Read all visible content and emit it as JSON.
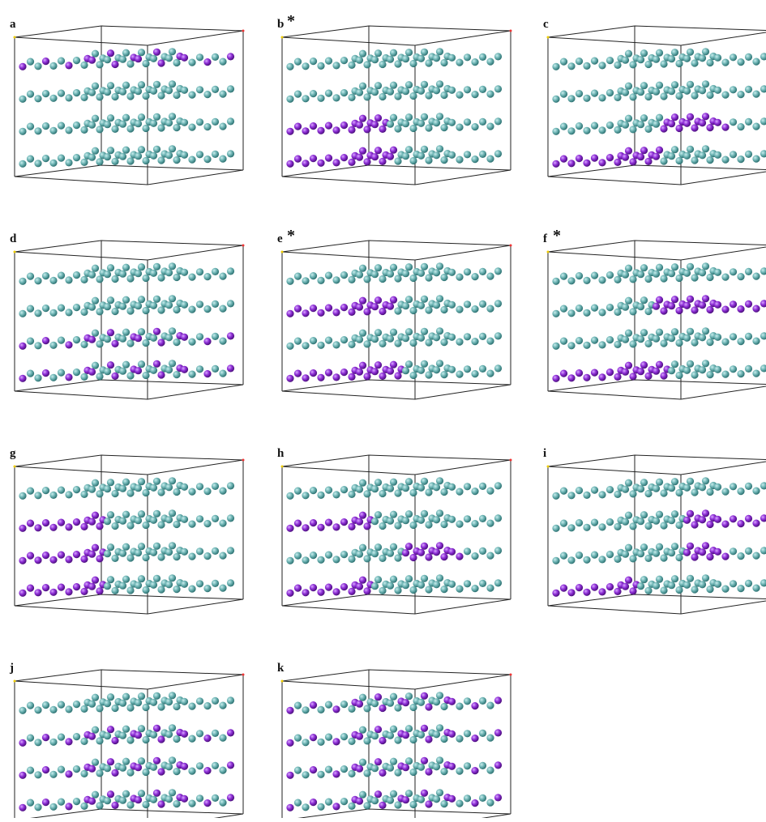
{
  "panels": [
    {
      "label": "a"
    },
    {
      "label": "b",
      "mark": "*"
    },
    {
      "label": "c"
    },
    {
      "label": "d"
    },
    {
      "label": "e",
      "mark": "*"
    },
    {
      "label": "f",
      "mark": "*"
    },
    {
      "label": "g"
    },
    {
      "label": "h"
    },
    {
      "label": "i"
    },
    {
      "label": "j"
    },
    {
      "label": "k"
    }
  ]
}
